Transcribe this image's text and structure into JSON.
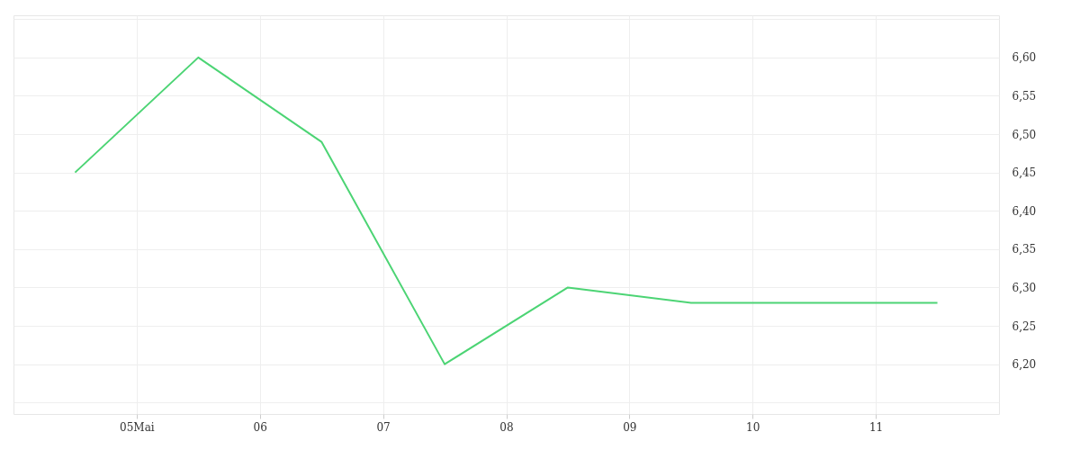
{
  "chart_data": {
    "type": "line",
    "x": [
      "--05-04T12:00",
      "--05-05T12:00",
      "--05-06T12:00",
      "--05-07T12:00",
      "--05-08T12:00",
      "--05-09T12:00",
      "--05-10T12:00",
      "--05-11T12:00"
    ],
    "series": [
      {
        "color": "#4cd474",
        "values": [
          6.45,
          6.6,
          6.49,
          6.2,
          6.3,
          6.28,
          6.28,
          6.28
        ]
      }
    ],
    "xlim": [
      "--05-04",
      "--05-12"
    ],
    "xticks": [
      {
        "value": "--05-05",
        "label": "05Mai"
      },
      {
        "value": "--05-06",
        "label": "06"
      },
      {
        "value": "--05-07",
        "label": "07"
      },
      {
        "value": "--05-08",
        "label": "08"
      },
      {
        "value": "--05-09",
        "label": "09"
      },
      {
        "value": "--05-10",
        "label": "10"
      },
      {
        "value": "--05-11",
        "label": "11"
      }
    ],
    "ylim": [
      6.135,
      6.655
    ],
    "yticks": [
      {
        "value": 6.15,
        "label": null
      },
      {
        "value": 6.2,
        "label": "6,20"
      },
      {
        "value": 6.25,
        "label": "6,25"
      },
      {
        "value": 6.3,
        "label": "6,30"
      },
      {
        "value": 6.35,
        "label": "6,35"
      },
      {
        "value": 6.4,
        "label": "6,40"
      },
      {
        "value": 6.45,
        "label": "6,45"
      },
      {
        "value": 6.5,
        "label": "6,50"
      },
      {
        "value": 6.55,
        "label": "6,55"
      },
      {
        "value": 6.6,
        "label": "6,60"
      },
      {
        "value": 6.65,
        "label": null
      }
    ],
    "grid": true,
    "line_style": "solid"
  }
}
